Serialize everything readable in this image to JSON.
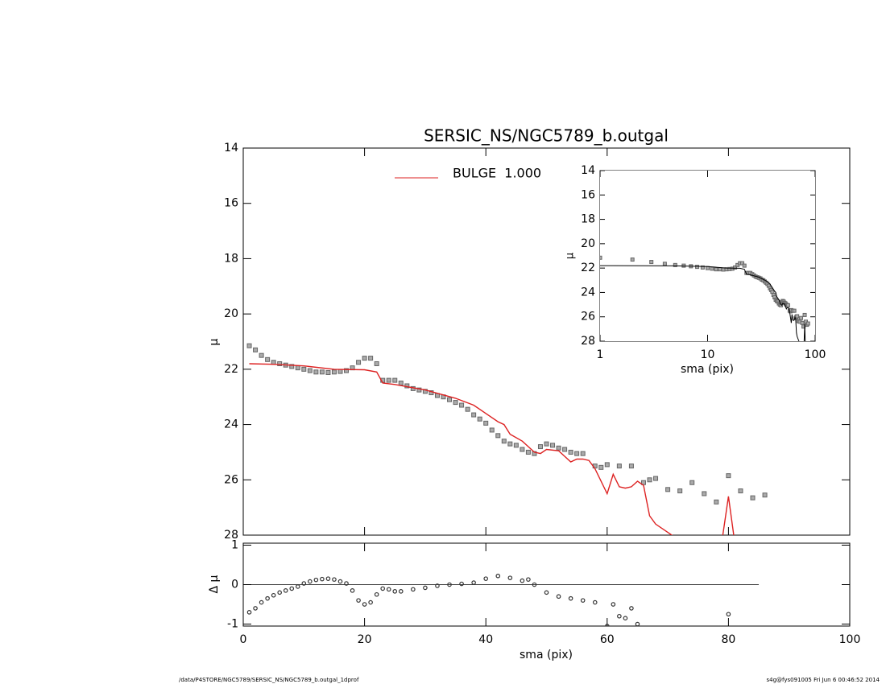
{
  "chart_data": [
    {
      "type": "scatter",
      "title": "SERSIC_NS/NGC5789_b.outgal",
      "ylabel": "μ",
      "xlim": [
        0,
        100
      ],
      "ylim": [
        14,
        28
      ],
      "y_inverted": true,
      "yticks": [
        14,
        16,
        18,
        20,
        22,
        24,
        26,
        28
      ],
      "legend": "upper center",
      "series": [
        {
          "color": "#666666",
          "marker": "square",
          "x": [
            1,
            2,
            3,
            4,
            5,
            6,
            7,
            8,
            9,
            10,
            11,
            12,
            13,
            14,
            15,
            16,
            17,
            18,
            19,
            20,
            21,
            22,
            23,
            24,
            25,
            26,
            27,
            28,
            29,
            30,
            31,
            32,
            33,
            34,
            35,
            36,
            37,
            38,
            39,
            40,
            41,
            42,
            43,
            44,
            45,
            46,
            47,
            48,
            49,
            50,
            51,
            52,
            53,
            54,
            55,
            56,
            58,
            59,
            60,
            62,
            64,
            66,
            67,
            68,
            70,
            72,
            74,
            76,
            78,
            80,
            82,
            84,
            86
          ],
          "values": [
            21.15,
            21.3,
            21.5,
            21.65,
            21.75,
            21.8,
            21.85,
            21.9,
            21.95,
            22.0,
            22.05,
            22.1,
            22.1,
            22.12,
            22.1,
            22.08,
            22.05,
            21.95,
            21.75,
            21.6,
            21.6,
            21.8,
            22.4,
            22.4,
            22.4,
            22.5,
            22.6,
            22.7,
            22.75,
            22.8,
            22.85,
            22.95,
            23.0,
            23.1,
            23.2,
            23.3,
            23.45,
            23.65,
            23.8,
            23.95,
            24.2,
            24.4,
            24.6,
            24.7,
            24.75,
            24.9,
            25.0,
            25.05,
            24.8,
            24.7,
            24.75,
            24.85,
            24.9,
            25.0,
            25.05,
            25.05,
            25.5,
            25.55,
            25.45,
            25.5,
            25.5,
            26.1,
            26.0,
            25.95,
            26.35,
            26.4,
            26.1,
            26.5,
            26.8,
            25.85,
            26.4,
            26.65,
            26.55
          ]
        },
        {
          "name": "BULGE  1.000",
          "color": "#dd2222",
          "marker": "line",
          "x": [
            1,
            5,
            10,
            15,
            20,
            22,
            23,
            25,
            30,
            35,
            38,
            40,
            42,
            43,
            44,
            46,
            48,
            49,
            50,
            52,
            53,
            54,
            55,
            56,
            57,
            58,
            60,
            61,
            62,
            63,
            64,
            65,
            66,
            67,
            68,
            70,
            72,
            79,
            80,
            81
          ],
          "values": [
            21.8,
            21.82,
            21.88,
            22.0,
            22.02,
            22.1,
            22.5,
            22.55,
            22.75,
            23.05,
            23.3,
            23.6,
            23.9,
            24.0,
            24.35,
            24.6,
            25.0,
            25.05,
            24.9,
            24.95,
            25.15,
            25.35,
            25.25,
            25.25,
            25.3,
            25.6,
            26.5,
            25.8,
            26.25,
            26.3,
            26.25,
            26.05,
            26.2,
            27.3,
            27.6,
            27.9,
            28.2,
            28.1,
            26.6,
            28.2
          ]
        }
      ]
    },
    {
      "type": "scatter",
      "ylabel": "Δ μ",
      "xlabel": "sma (pix)",
      "xlim": [
        0,
        100
      ],
      "xticks": [
        0,
        20,
        40,
        60,
        80,
        100
      ],
      "ylim": [
        -1.05,
        1.05
      ],
      "yticks": [
        -1,
        0,
        1
      ],
      "reference_line": {
        "y": 0,
        "x": [
          0,
          85
        ]
      },
      "series": [
        {
          "color": "#333333",
          "x": [
            1,
            2,
            3,
            4,
            5,
            6,
            7,
            8,
            9,
            10,
            11,
            12,
            13,
            14,
            15,
            16,
            17,
            18,
            19,
            20,
            21,
            22,
            23,
            24,
            25,
            26,
            28,
            30,
            32,
            34,
            36,
            38,
            40,
            42,
            44,
            46,
            47,
            48,
            50,
            52,
            54,
            56,
            58,
            60,
            61,
            62,
            63,
            64,
            65,
            80
          ],
          "values": [
            -0.7,
            -0.6,
            -0.45,
            -0.35,
            -0.27,
            -0.2,
            -0.15,
            -0.1,
            -0.05,
            0.03,
            0.08,
            0.12,
            0.14,
            0.15,
            0.13,
            0.08,
            0.03,
            -0.15,
            -0.4,
            -0.5,
            -0.45,
            -0.25,
            -0.1,
            -0.12,
            -0.17,
            -0.17,
            -0.12,
            -0.08,
            -0.03,
            0,
            0.02,
            0.05,
            0.15,
            0.22,
            0.17,
            0.1,
            0.13,
            0,
            -0.2,
            -0.3,
            -0.35,
            -0.4,
            -0.45,
            -1.05,
            -0.5,
            -0.8,
            -0.85,
            -0.6,
            -1.0,
            -0.75
          ]
        }
      ]
    },
    {
      "type": "inset",
      "ylabel": "μ",
      "xlabel": "sma (pix)",
      "xlog": true,
      "xlim": [
        1,
        100
      ],
      "xticks": [
        1,
        10,
        100
      ],
      "ylim": [
        14,
        28
      ],
      "y_inverted": true,
      "yticks": [
        14,
        16,
        18,
        20,
        22,
        24,
        26,
        28
      ],
      "line_color": "#000000"
    }
  ],
  "footer": {
    "left": "/data/P4STORE/NGC5789/SERSIC_NS/NGC5789_b.outgal_1dprof",
    "right": "s4g@fys091005  Fri Jun  6 00:46:52 2014"
  }
}
